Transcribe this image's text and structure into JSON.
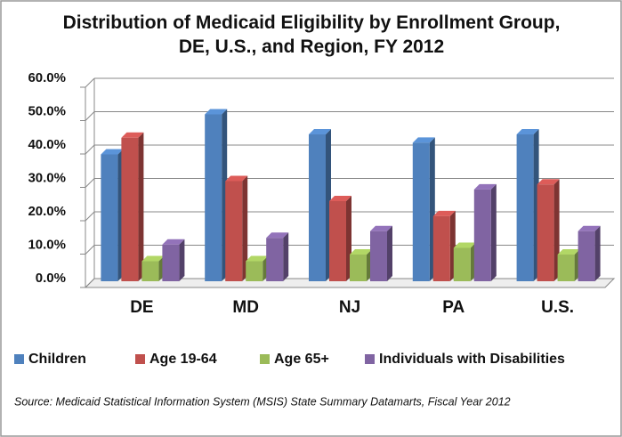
{
  "chart_data": {
    "type": "bar",
    "title": "Distribution of Medicaid Eligibility by Enrollment Group, DE, U.S., and Region, FY 2012",
    "source": "Source:  Medicaid Statistical Information System (MSIS) State Summary Datamarts, Fiscal Year 2012",
    "categories": [
      "DE",
      "MD",
      "NJ",
      "PA",
      "U.S."
    ],
    "series": [
      {
        "name": "Children",
        "color": "#4f81bd",
        "values": [
          38,
          50,
          44,
          41.5,
          44
        ]
      },
      {
        "name": "Age 19-64",
        "color": "#c0504d",
        "values": [
          43,
          30,
          24,
          19.5,
          29
        ]
      },
      {
        "name": "Age 65+",
        "color": "#9bbb59",
        "values": [
          6,
          6,
          8,
          10,
          8
        ]
      },
      {
        "name": "Individuals with Disabilities",
        "color": "#8064a2",
        "values": [
          11,
          13,
          15,
          27.5,
          15
        ]
      }
    ],
    "ylim": [
      0,
      60
    ],
    "yticks": [
      {
        "value": 0,
        "label": "0.0%"
      },
      {
        "value": 10,
        "label": "10.0%"
      },
      {
        "value": 20,
        "label": "20.0%"
      },
      {
        "value": 30,
        "label": "30.0%"
      },
      {
        "value": 40,
        "label": "40.0%"
      },
      {
        "value": 50,
        "label": "50.0%"
      },
      {
        "value": 60,
        "label": "60.0%"
      }
    ],
    "grid": true,
    "legend": "bottom"
  }
}
